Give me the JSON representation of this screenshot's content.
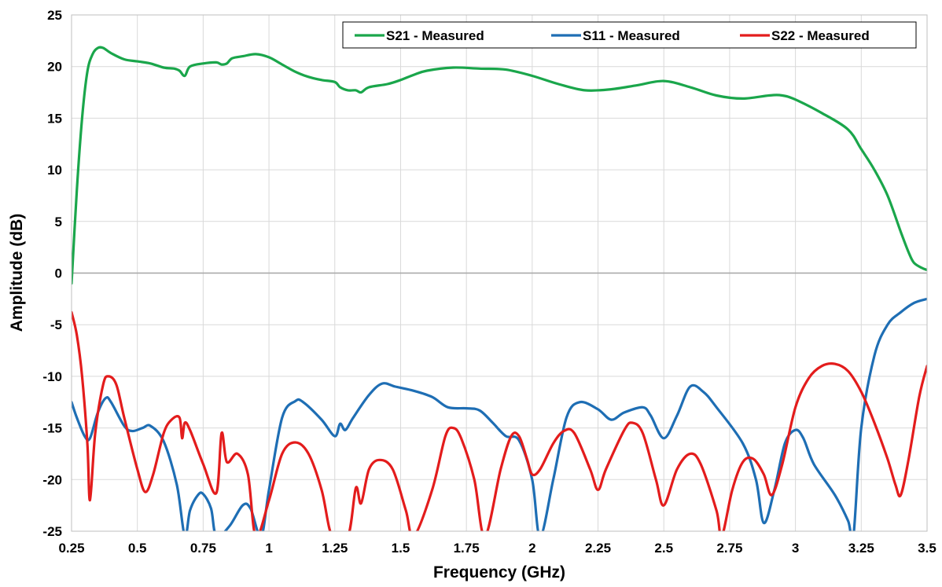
{
  "chart_data": {
    "type": "line",
    "title": "",
    "xlabel": "Frequency (GHz)",
    "ylabel": "Amplitude (dB)",
    "xlim": [
      0.25,
      3.5
    ],
    "ylim": [
      -25,
      25
    ],
    "x_ticks": [
      "0.25",
      "0.5",
      "0.75",
      "1",
      "1.25",
      "1.5",
      "1.75",
      "2",
      "2.25",
      "2.5",
      "2.75",
      "3",
      "3.25",
      "3.5"
    ],
    "y_ticks": [
      "25",
      "20",
      "15",
      "10",
      "5",
      "0",
      "-5",
      "-10",
      "-15",
      "-20",
      "-25"
    ],
    "grid": true,
    "legend_position": "top-right",
    "series": [
      {
        "name": "S21 - Measured",
        "color": "#1aa64b",
        "points": [
          [
            0.25,
            -1
          ],
          [
            0.27,
            8
          ],
          [
            0.29,
            15
          ],
          [
            0.31,
            19.5
          ],
          [
            0.33,
            21.2
          ],
          [
            0.35,
            21.8
          ],
          [
            0.37,
            21.8
          ],
          [
            0.4,
            21.3
          ],
          [
            0.45,
            20.7
          ],
          [
            0.5,
            20.5
          ],
          [
            0.55,
            20.3
          ],
          [
            0.6,
            19.9
          ],
          [
            0.64,
            19.8
          ],
          [
            0.66,
            19.6
          ],
          [
            0.68,
            19.1
          ],
          [
            0.7,
            20.0
          ],
          [
            0.75,
            20.3
          ],
          [
            0.8,
            20.4
          ],
          [
            0.82,
            20.2
          ],
          [
            0.84,
            20.3
          ],
          [
            0.86,
            20.8
          ],
          [
            0.9,
            21.0
          ],
          [
            0.95,
            21.2
          ],
          [
            1.0,
            20.9
          ],
          [
            1.05,
            20.2
          ],
          [
            1.1,
            19.5
          ],
          [
            1.15,
            19.0
          ],
          [
            1.2,
            18.7
          ],
          [
            1.25,
            18.5
          ],
          [
            1.27,
            18.0
          ],
          [
            1.3,
            17.7
          ],
          [
            1.33,
            17.7
          ],
          [
            1.35,
            17.5
          ],
          [
            1.38,
            18.0
          ],
          [
            1.45,
            18.3
          ],
          [
            1.5,
            18.7
          ],
          [
            1.55,
            19.2
          ],
          [
            1.6,
            19.6
          ],
          [
            1.7,
            19.9
          ],
          [
            1.8,
            19.8
          ],
          [
            1.9,
            19.7
          ],
          [
            2.0,
            19.1
          ],
          [
            2.1,
            18.3
          ],
          [
            2.2,
            17.7
          ],
          [
            2.3,
            17.8
          ],
          [
            2.4,
            18.2
          ],
          [
            2.5,
            18.6
          ],
          [
            2.6,
            18.0
          ],
          [
            2.7,
            17.2
          ],
          [
            2.8,
            16.9
          ],
          [
            2.9,
            17.2
          ],
          [
            2.95,
            17.2
          ],
          [
            3.0,
            16.8
          ],
          [
            3.1,
            15.5
          ],
          [
            3.2,
            13.9
          ],
          [
            3.25,
            12.0
          ],
          [
            3.3,
            10.0
          ],
          [
            3.35,
            7.5
          ],
          [
            3.4,
            4.0
          ],
          [
            3.43,
            2.0
          ],
          [
            3.45,
            1.0
          ],
          [
            3.48,
            0.5
          ],
          [
            3.5,
            0.3
          ]
        ]
      },
      {
        "name": "S11 - Measured",
        "color": "#1e6eb4",
        "points": [
          [
            0.25,
            -12.5
          ],
          [
            0.27,
            -14
          ],
          [
            0.3,
            -15.8
          ],
          [
            0.32,
            -16
          ],
          [
            0.35,
            -13.5
          ],
          [
            0.38,
            -12.1
          ],
          [
            0.4,
            -12.5
          ],
          [
            0.45,
            -14.8
          ],
          [
            0.48,
            -15.3
          ],
          [
            0.52,
            -15
          ],
          [
            0.55,
            -14.8
          ],
          [
            0.6,
            -16.3
          ],
          [
            0.65,
            -20.5
          ],
          [
            0.68,
            -25.5
          ],
          [
            0.7,
            -23
          ],
          [
            0.73,
            -21.5
          ],
          [
            0.75,
            -21.4
          ],
          [
            0.78,
            -22.8
          ],
          [
            0.8,
            -25.5
          ],
          [
            0.85,
            -24.5
          ],
          [
            0.9,
            -22.5
          ],
          [
            0.93,
            -22.8
          ],
          [
            0.97,
            -25.5
          ],
          [
            1.0,
            -21
          ],
          [
            1.05,
            -14
          ],
          [
            1.1,
            -12.4
          ],
          [
            1.13,
            -12.5
          ],
          [
            1.2,
            -14.2
          ],
          [
            1.25,
            -15.8
          ],
          [
            1.27,
            -14.6
          ],
          [
            1.29,
            -15.2
          ],
          [
            1.32,
            -14
          ],
          [
            1.38,
            -11.8
          ],
          [
            1.43,
            -10.7
          ],
          [
            1.48,
            -11
          ],
          [
            1.55,
            -11.4
          ],
          [
            1.62,
            -12
          ],
          [
            1.68,
            -13
          ],
          [
            1.75,
            -13.1
          ],
          [
            1.8,
            -13.3
          ],
          [
            1.85,
            -14.5
          ],
          [
            1.9,
            -15.8
          ],
          [
            1.95,
            -16.2
          ],
          [
            2.0,
            -20
          ],
          [
            2.03,
            -25.5
          ],
          [
            2.08,
            -20
          ],
          [
            2.13,
            -14
          ],
          [
            2.18,
            -12.5
          ],
          [
            2.25,
            -13.2
          ],
          [
            2.3,
            -14.2
          ],
          [
            2.35,
            -13.5
          ],
          [
            2.42,
            -13
          ],
          [
            2.45,
            -13.8
          ],
          [
            2.5,
            -16
          ],
          [
            2.55,
            -13.8
          ],
          [
            2.6,
            -11
          ],
          [
            2.65,
            -11.5
          ],
          [
            2.7,
            -13
          ],
          [
            2.8,
            -16.5
          ],
          [
            2.85,
            -20
          ],
          [
            2.88,
            -24.2
          ],
          [
            2.92,
            -21
          ],
          [
            2.96,
            -16.5
          ],
          [
            3.0,
            -15.2
          ],
          [
            3.03,
            -16
          ],
          [
            3.07,
            -18.5
          ],
          [
            3.15,
            -21.5
          ],
          [
            3.2,
            -24
          ],
          [
            3.22,
            -25.5
          ],
          [
            3.25,
            -15
          ],
          [
            3.3,
            -8
          ],
          [
            3.35,
            -5
          ],
          [
            3.4,
            -3.8
          ],
          [
            3.45,
            -2.9
          ],
          [
            3.5,
            -2.5
          ]
        ]
      },
      {
        "name": "S22 - Measured",
        "color": "#e31c1c",
        "points": [
          [
            0.25,
            -3.8
          ],
          [
            0.27,
            -6
          ],
          [
            0.29,
            -10
          ],
          [
            0.31,
            -16.5
          ],
          [
            0.32,
            -22
          ],
          [
            0.34,
            -15.5
          ],
          [
            0.37,
            -10.8
          ],
          [
            0.39,
            -10
          ],
          [
            0.42,
            -10.8
          ],
          [
            0.45,
            -14
          ],
          [
            0.5,
            -19
          ],
          [
            0.53,
            -21.2
          ],
          [
            0.56,
            -19.5
          ],
          [
            0.6,
            -15.5
          ],
          [
            0.63,
            -14.2
          ],
          [
            0.66,
            -14
          ],
          [
            0.67,
            -16
          ],
          [
            0.68,
            -14.5
          ],
          [
            0.7,
            -15.2
          ],
          [
            0.75,
            -18.5
          ],
          [
            0.8,
            -21.3
          ],
          [
            0.82,
            -15.5
          ],
          [
            0.84,
            -18.3
          ],
          [
            0.88,
            -17.5
          ],
          [
            0.92,
            -19.5
          ],
          [
            0.95,
            -25.5
          ],
          [
            1.0,
            -22
          ],
          [
            1.05,
            -17.5
          ],
          [
            1.1,
            -16.4
          ],
          [
            1.15,
            -17.5
          ],
          [
            1.2,
            -21
          ],
          [
            1.24,
            -25.5
          ],
          [
            1.3,
            -25.5
          ],
          [
            1.33,
            -20.8
          ],
          [
            1.35,
            -22.3
          ],
          [
            1.38,
            -19
          ],
          [
            1.42,
            -18.1
          ],
          [
            1.47,
            -19
          ],
          [
            1.52,
            -23
          ],
          [
            1.55,
            -25.5
          ],
          [
            1.62,
            -21
          ],
          [
            1.67,
            -15.8
          ],
          [
            1.7,
            -15
          ],
          [
            1.73,
            -16
          ],
          [
            1.78,
            -20
          ],
          [
            1.82,
            -25.5
          ],
          [
            1.88,
            -19
          ],
          [
            1.92,
            -15.8
          ],
          [
            1.95,
            -15.8
          ],
          [
            1.98,
            -18
          ],
          [
            2.0,
            -19.5
          ],
          [
            2.03,
            -19
          ],
          [
            2.08,
            -16.5
          ],
          [
            2.12,
            -15.3
          ],
          [
            2.16,
            -15.5
          ],
          [
            2.22,
            -19
          ],
          [
            2.25,
            -21
          ],
          [
            2.28,
            -19
          ],
          [
            2.35,
            -15.2
          ],
          [
            2.38,
            -14.5
          ],
          [
            2.42,
            -15.5
          ],
          [
            2.47,
            -20
          ],
          [
            2.5,
            -22.5
          ],
          [
            2.55,
            -19
          ],
          [
            2.6,
            -17.5
          ],
          [
            2.64,
            -18.5
          ],
          [
            2.7,
            -23
          ],
          [
            2.72,
            -25.5
          ],
          [
            2.76,
            -21
          ],
          [
            2.8,
            -18.3
          ],
          [
            2.84,
            -18
          ],
          [
            2.88,
            -19.5
          ],
          [
            2.91,
            -21.5
          ],
          [
            2.95,
            -18.5
          ],
          [
            3.0,
            -13
          ],
          [
            3.05,
            -10.2
          ],
          [
            3.1,
            -9
          ],
          [
            3.15,
            -8.8
          ],
          [
            3.2,
            -9.5
          ],
          [
            3.25,
            -11.5
          ],
          [
            3.3,
            -14.5
          ],
          [
            3.35,
            -18
          ],
          [
            3.38,
            -20.5
          ],
          [
            3.4,
            -21.5
          ],
          [
            3.43,
            -18
          ],
          [
            3.47,
            -12
          ],
          [
            3.5,
            -9
          ]
        ]
      }
    ]
  }
}
